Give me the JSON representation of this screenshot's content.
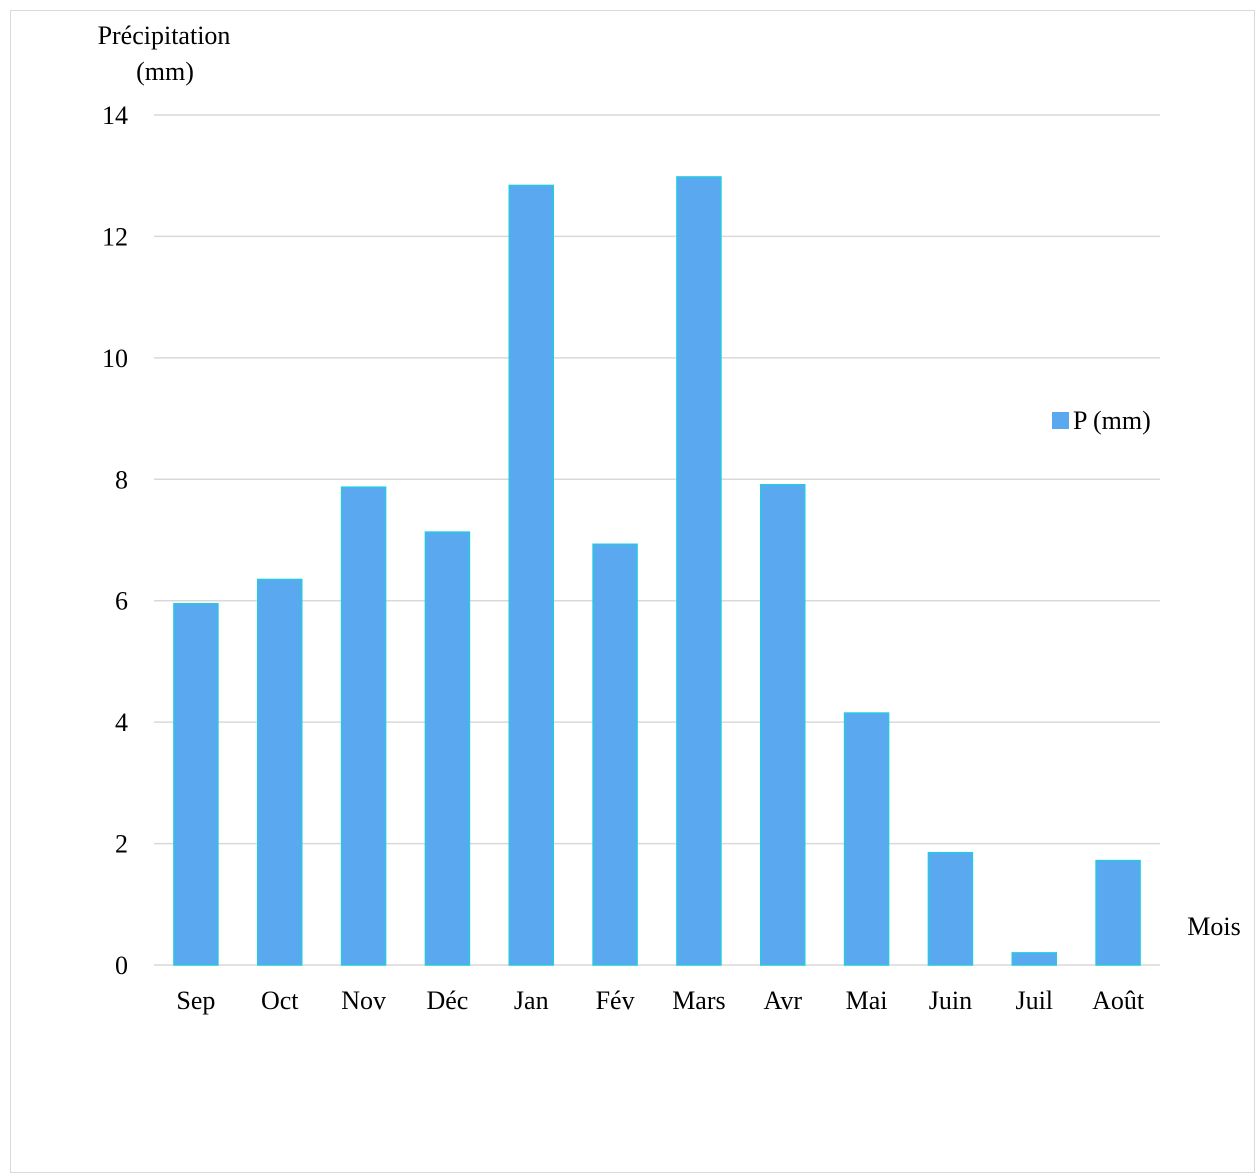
{
  "chart_data": {
    "type": "bar",
    "categories": [
      "Sep",
      "Oct",
      "Nov",
      "Déc",
      "Jan",
      "Fév",
      "Mars",
      "Avr",
      "Mai",
      "Juin",
      "Juil",
      "Août"
    ],
    "series": [
      {
        "name": "P (mm)",
        "values": [
          5.95,
          6.35,
          7.87,
          7.13,
          12.84,
          6.93,
          12.98,
          7.91,
          4.15,
          1.85,
          0.2,
          1.72
        ]
      }
    ],
    "ylabel_line1": "Précipitation",
    "ylabel_line2": "(mm)",
    "xlabel": "Mois",
    "ylim": [
      0,
      14
    ],
    "yticks": [
      0,
      2,
      4,
      6,
      8,
      10,
      12,
      14
    ],
    "grid": true,
    "legend_position": "right",
    "colors": {
      "bar_fill": "#5aa9f0",
      "bar_edge": "#27c8e0",
      "gridline": "#d9d9d9",
      "axis_line": "#d9d9d9",
      "frame_border": "#d9d9d9",
      "text": "#000000"
    }
  }
}
